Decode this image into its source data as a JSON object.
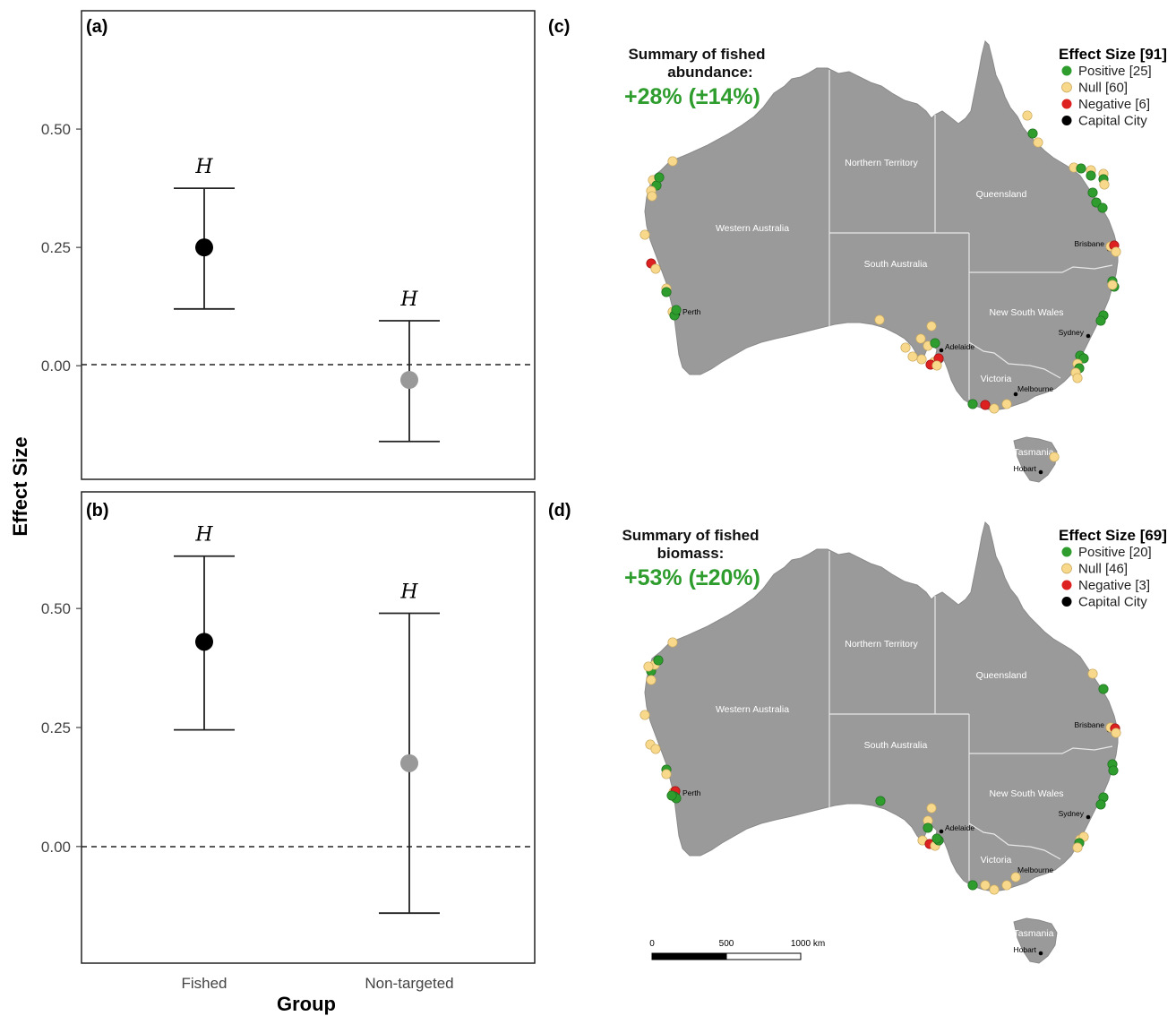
{
  "figure": {
    "y_axis_title": "Effect Size",
    "x_axis_title": "Group",
    "x_categories": [
      "Fished",
      "Non-targeted"
    ],
    "y_ticks": [
      "0.50",
      "0.25",
      "0.00"
    ]
  },
  "chart_data": [
    {
      "panel": "(a)",
      "type": "scatter",
      "categories": [
        "Fished",
        "Non-targeted"
      ],
      "series": [
        {
          "category": "Fished",
          "estimate": 0.25,
          "ci_low": 0.12,
          "ci_high": 0.375,
          "label": "H",
          "color": "#000000"
        },
        {
          "category": "Non-targeted",
          "estimate": -0.03,
          "ci_low": -0.16,
          "ci_high": 0.095,
          "label": "H",
          "color": "#999999"
        }
      ],
      "ylim": [
        -0.24,
        0.75
      ],
      "reference_line": 0,
      "xlabel": "",
      "ylabel": "Effect Size"
    },
    {
      "panel": "(b)",
      "type": "scatter",
      "categories": [
        "Fished",
        "Non-targeted"
      ],
      "series": [
        {
          "category": "Fished",
          "estimate": 0.43,
          "ci_low": 0.245,
          "ci_high": 0.61,
          "label": "H",
          "color": "#000000"
        },
        {
          "category": "Non-targeted",
          "estimate": 0.175,
          "ci_low": -0.14,
          "ci_high": 0.49,
          "label": "H",
          "color": "#999999"
        }
      ],
      "ylim": [
        -0.245,
        0.745
      ],
      "reference_line": 0,
      "xlabel": "Group",
      "ylabel": "Effect Size"
    }
  ],
  "maps": [
    {
      "panel": "(c)",
      "summary_title_1": "Summary of fished",
      "summary_title_2": "abundance:",
      "summary_value": "+28% (±14%)",
      "legend_title": "Effect Size [91]",
      "legend": [
        {
          "label": "Positive [25]",
          "color": "#2e9d2e"
        },
        {
          "label": "Null [60]",
          "color": "#f8d88a"
        },
        {
          "label": "Negative [6]",
          "color": "#dd2020"
        },
        {
          "label": "Capital City",
          "color": "#000000"
        }
      ]
    },
    {
      "panel": "(d)",
      "summary_title_1": "Summary of fished",
      "summary_title_2": "biomass:",
      "summary_value": "+53% (±20%)",
      "legend_title": "Effect Size [69]",
      "legend": [
        {
          "label": "Positive [20]",
          "color": "#2e9d2e"
        },
        {
          "label": "Null [46]",
          "color": "#f8d88a"
        },
        {
          "label": "Negative [3]",
          "color": "#dd2020"
        },
        {
          "label": "Capital City",
          "color": "#000000"
        }
      ]
    }
  ],
  "map_labels": {
    "states": [
      "Western Australia",
      "Northern Territory",
      "Queensland",
      "South Australia",
      "New South Wales",
      "Victoria",
      "Tasmania"
    ],
    "cities": [
      "Perth",
      "Adelaide",
      "Brisbane",
      "Sydney",
      "Melbourne",
      "Hobart"
    ]
  },
  "scale_bar": [
    "0",
    "500",
    "1000 km"
  ],
  "colors": {
    "land": "#9a9a9a",
    "positive": "#2e9d2e",
    "null": "#f8d88a",
    "negative": "#dd2020",
    "fished_point": "#000000",
    "nontargeted_point": "#999999"
  }
}
